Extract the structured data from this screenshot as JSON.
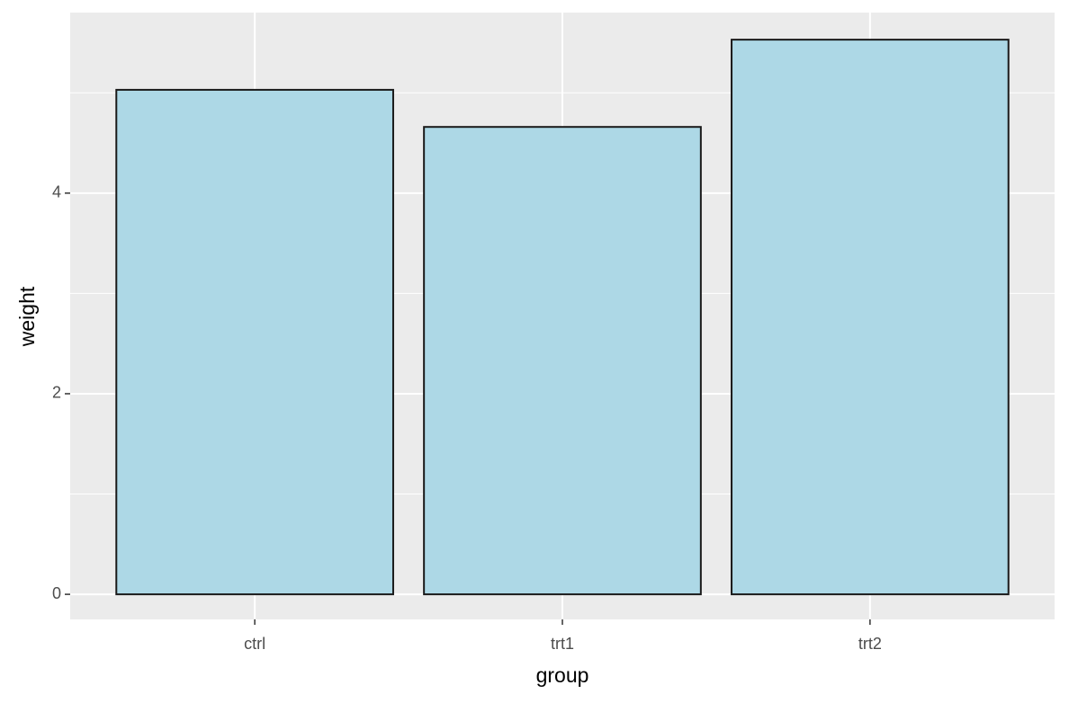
{
  "chart_data": {
    "type": "bar",
    "x_label": "group",
    "y_label": "weight",
    "categories": [
      "ctrl",
      "trt1",
      "trt2"
    ],
    "values": [
      5.03,
      4.66,
      5.53
    ],
    "color": "#add8e6",
    "edge_color": "#1a1a1a",
    "ylim": [
      -0.25,
      5.8
    ],
    "yticks": [
      0,
      2,
      4
    ],
    "minor_yticks": [
      1,
      3,
      5
    ],
    "grid": true
  }
}
